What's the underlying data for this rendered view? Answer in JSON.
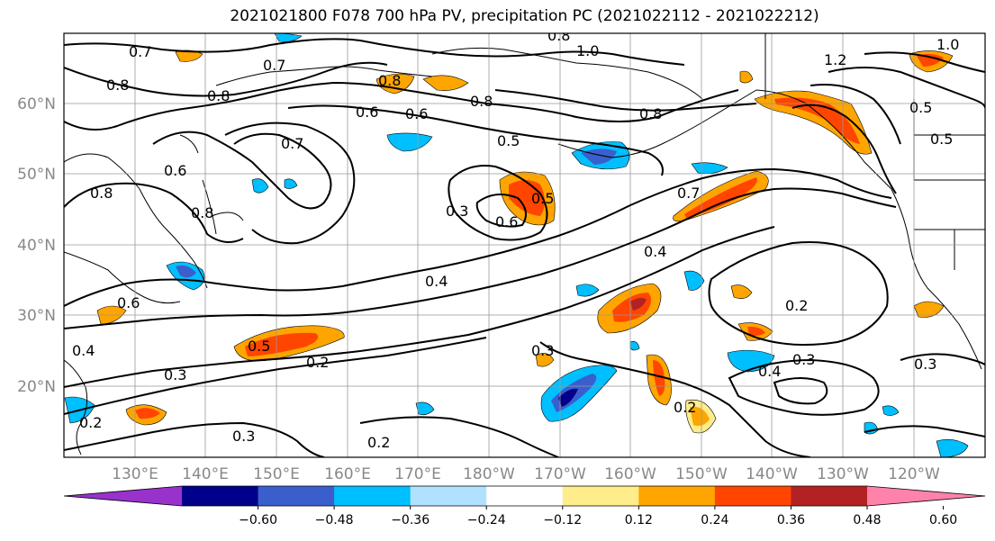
{
  "title": "2021021800 F078 700 hPa PV, precipitation PC (2021022112 - 2021022212)",
  "lat_labels": [
    "60°N",
    "50°N",
    "40°N",
    "30°N",
    "20°N"
  ],
  "lon_labels": [
    "130°E",
    "140°E",
    "150°E",
    "160°E",
    "170°E",
    "180°W",
    "170°W",
    "160°W",
    "150°W",
    "140°W",
    "130°W",
    "120°W"
  ],
  "colorbar": {
    "colors": [
      "#9932cc",
      "#00008b",
      "#3a5fcd",
      "#00bfff",
      "#b0e2ff",
      "#ffffff",
      "#ffec8b",
      "#ffa500",
      "#ff4500",
      "#b22222",
      "#ff82ab"
    ],
    "tick_labels": [
      "−0.60",
      "−0.48",
      "−0.36",
      "−0.24",
      "−0.12",
      "0.12",
      "0.24",
      "0.36",
      "0.48",
      "0.60"
    ]
  },
  "contour_labels": [
    "0.7",
    "0.7",
    "0.8",
    "0.8",
    "0.8",
    "0.8",
    "0.6",
    "0.6",
    "0.7",
    "0.6",
    "0.5",
    "0.5",
    "0.6",
    "0.8",
    "0.4",
    "0.5",
    "0.3",
    "0.2",
    "0.4",
    "0.7",
    "1.0",
    "1.2",
    "1.0",
    "0.8",
    "0.5",
    "0.3",
    "0.4",
    "0.2",
    "0.2",
    "0.3",
    "0.4",
    "0.3",
    "0.2",
    "0.2",
    "0.3",
    "0.8",
    "0.5",
    "0.6",
    "0.3",
    "0.8"
  ]
}
